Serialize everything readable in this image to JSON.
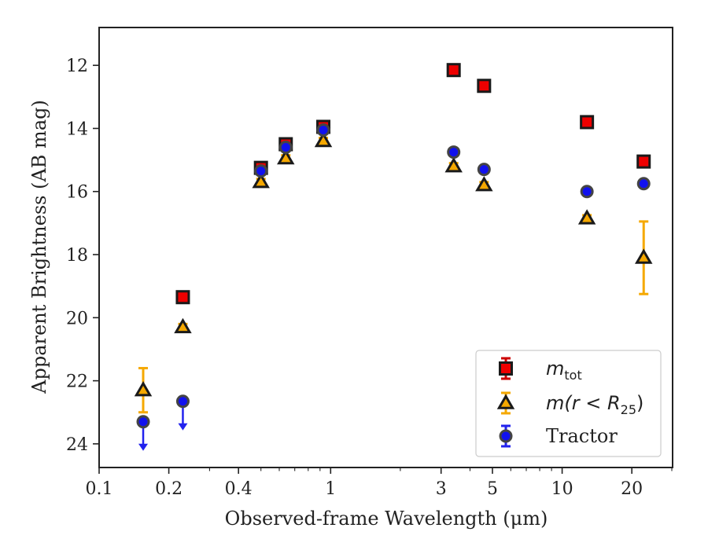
{
  "chart_data": {
    "type": "scatter",
    "xlabel": "Observed-frame Wavelength (μm)",
    "ylabel": "Apparent Brightness (AB mag)",
    "x_scale": "log",
    "xlim": [
      0.1,
      30
    ],
    "ylim": [
      24.75,
      10.8
    ],
    "x_ticks": [
      0.1,
      0.2,
      0.4,
      1,
      3,
      5,
      10,
      20
    ],
    "x_tick_labels": [
      "0.1",
      "0.2",
      "0.4",
      "1",
      "3",
      "5",
      "10",
      "20"
    ],
    "y_ticks": [
      12,
      14,
      16,
      18,
      20,
      22,
      24
    ],
    "y_tick_labels": [
      "12",
      "14",
      "16",
      "18",
      "20",
      "22",
      "24"
    ],
    "grid": false,
    "legend_position": "lower-right",
    "series": [
      {
        "name": "m_tot",
        "legend_main": "m",
        "legend_sub": "tot",
        "legend_suffix": "",
        "marker": "square",
        "color": "#ee0000",
        "edge_color": "#1a1a1a",
        "error_color": "#cc0000",
        "x": [
          0.23,
          0.5,
          0.64,
          0.93,
          3.4,
          4.6,
          12.8,
          22.5
        ],
        "y": [
          19.35,
          15.25,
          14.5,
          13.95,
          12.15,
          12.65,
          13.8,
          15.05
        ],
        "yerr": [
          0.1,
          0.12,
          0.12,
          0.12,
          0.1,
          0.1,
          0.1,
          0.1
        ],
        "upper_limit": [
          false,
          false,
          false,
          false,
          false,
          false,
          false,
          false
        ]
      },
      {
        "name": "m(r < R_25)",
        "legend_main": "m(r < R",
        "legend_sub": "25",
        "legend_suffix": ")",
        "marker": "triangle",
        "color": "#f5a800",
        "edge_color": "#1a1a1a",
        "error_color": "#f5a800",
        "x": [
          0.155,
          0.23,
          0.5,
          0.64,
          0.93,
          3.4,
          4.6,
          12.8,
          22.5
        ],
        "y": [
          22.3,
          20.3,
          15.7,
          14.95,
          14.4,
          15.2,
          15.8,
          16.85,
          18.1
        ],
        "yerr": [
          0.7,
          0.1,
          0.1,
          0.1,
          0.1,
          0.1,
          0.1,
          0.1,
          1.15
        ],
        "upper_limit": [
          false,
          false,
          false,
          false,
          false,
          false,
          false,
          false,
          false
        ]
      },
      {
        "name": "Tractor",
        "legend_main": "Tractor",
        "legend_sub": "",
        "legend_suffix": "",
        "marker": "circle",
        "color": "#1111ee",
        "edge_color": "#444444",
        "error_color": "#2222ee",
        "x": [
          0.155,
          0.23,
          0.5,
          0.64,
          0.93,
          3.4,
          4.6,
          12.8,
          22.5
        ],
        "y": [
          23.3,
          22.65,
          15.35,
          14.6,
          14.05,
          14.75,
          15.3,
          16.0,
          15.75
        ],
        "yerr": [
          0,
          0,
          0.1,
          0.1,
          0.1,
          0.1,
          0.1,
          0.1,
          0.1
        ],
        "upper_limit": [
          true,
          true,
          false,
          false,
          false,
          false,
          false,
          false,
          false
        ]
      }
    ]
  }
}
